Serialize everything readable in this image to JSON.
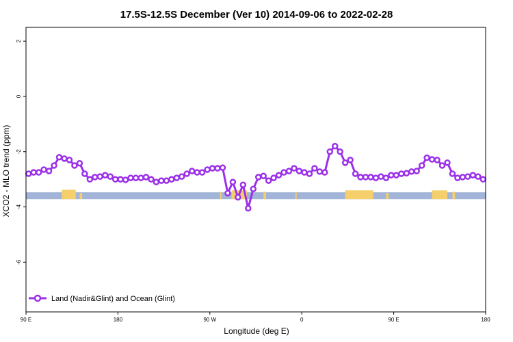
{
  "chart_data": {
    "type": "line",
    "title": "17.5S-12.5S December (Ver 10)   2014-09-06 to 2022-02-28",
    "xlabel": "Longitude (deg E)",
    "ylabel": "XCO2 - MLO trend (ppm)",
    "xlim": [
      90,
      450
    ],
    "ylim": [
      -7.8,
      2.5
    ],
    "x_ticks": [
      {
        "value": 90,
        "label": "90 E"
      },
      {
        "value": 162,
        "label": "180"
      },
      {
        "value": 234,
        "label": "90 W"
      },
      {
        "value": 306,
        "label": "0"
      },
      {
        "value": 378,
        "label": "90 E"
      },
      {
        "value": 450,
        "label": "180"
      }
    ],
    "y_ticks": [
      {
        "value": 2,
        "label": "2"
      },
      {
        "value": 0,
        "label": "0"
      },
      {
        "value": -2,
        "label": "-2"
      },
      {
        "value": -4,
        "label": "-4"
      },
      {
        "value": -6,
        "label": "-6"
      }
    ],
    "grid": false,
    "legend_position": "bottom-left",
    "colors": {
      "series": "#9b30e8",
      "ocean_band": "#a2b5d8",
      "land_band": "#f5cf6c"
    },
    "surface_band": {
      "y_top": -3.47,
      "y_bottom": -3.72,
      "land_segments": [
        {
          "x0": 118,
          "x1": 129,
          "y_top": -3.38
        },
        {
          "x0": 132,
          "x1": 134,
          "y_top": -3.5
        },
        {
          "x0": 242,
          "x1": 243,
          "y_top": -3.45
        },
        {
          "x0": 251,
          "x1": 263,
          "y_top": -3.4
        },
        {
          "x0": 276,
          "x1": 278,
          "y_top": -3.45
        },
        {
          "x0": 301,
          "x1": 302,
          "y_top": -3.45
        },
        {
          "x0": 340,
          "x1": 362,
          "y_top": -3.4
        },
        {
          "x0": 372,
          "x1": 374,
          "y_top": -3.5
        },
        {
          "x0": 408,
          "x1": 420,
          "y_top": -3.4
        },
        {
          "x0": 424,
          "x1": 426,
          "y_top": -3.45
        }
      ]
    },
    "series": [
      {
        "name": "Land (Nadir&Glint) and Ocean (Glint)",
        "x": [
          92,
          96,
          100,
          104,
          108,
          112,
          116,
          120,
          124,
          128,
          132,
          136,
          140,
          144,
          148,
          152,
          156,
          160,
          164,
          168,
          172,
          176,
          180,
          184,
          188,
          192,
          196,
          200,
          204,
          208,
          212,
          216,
          220,
          224,
          228,
          232,
          236,
          240,
          244,
          248,
          252,
          256,
          260,
          264,
          268,
          272,
          276,
          280,
          284,
          288,
          292,
          296,
          300,
          304,
          308,
          312,
          316,
          320,
          324,
          328,
          332,
          336,
          340,
          344,
          348,
          352,
          356,
          360,
          364,
          368,
          372,
          376,
          380,
          384,
          388,
          392,
          396,
          400,
          404,
          408,
          412,
          416,
          420,
          424,
          428,
          432,
          436,
          440,
          444,
          448
        ],
        "y": [
          -2.8,
          -2.75,
          -2.75,
          -2.65,
          -2.7,
          -2.5,
          -2.2,
          -2.25,
          -2.3,
          -2.5,
          -2.42,
          -2.8,
          -3.0,
          -2.92,
          -2.9,
          -2.85,
          -2.9,
          -3.0,
          -3.0,
          -3.02,
          -2.95,
          -2.95,
          -2.95,
          -2.92,
          -3.0,
          -3.1,
          -3.05,
          -3.05,
          -3.0,
          -2.95,
          -2.9,
          -2.8,
          -2.7,
          -2.75,
          -2.75,
          -2.65,
          -2.6,
          -2.6,
          -2.58,
          -3.5,
          -3.1,
          -3.65,
          -3.2,
          -4.05,
          -3.35,
          -2.92,
          -2.88,
          -3.05,
          -2.95,
          -2.85,
          -2.75,
          -2.7,
          -2.6,
          -2.7,
          -2.75,
          -2.8,
          -2.6,
          -2.72,
          -2.75,
          -2.0,
          -1.8,
          -2.0,
          -2.4,
          -2.3,
          -2.8,
          -2.92,
          -2.92,
          -2.92,
          -2.95,
          -2.9,
          -2.95,
          -2.85,
          -2.85,
          -2.8,
          -2.78,
          -2.72,
          -2.7,
          -2.5,
          -2.22,
          -2.28,
          -2.3,
          -2.5,
          -2.4,
          -2.8,
          -2.95,
          -2.92,
          -2.9,
          -2.85,
          -2.9,
          -3.0
        ]
      }
    ]
  }
}
